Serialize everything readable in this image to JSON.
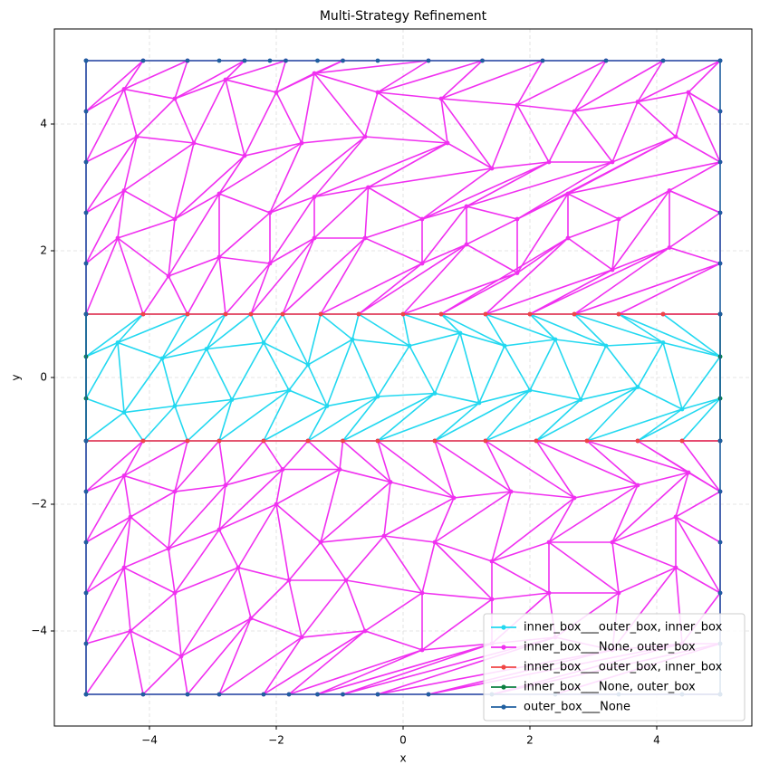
{
  "chart_data": {
    "type": "mesh",
    "title": "Multi-Strategy Refinement",
    "x_label": "x",
    "y_label": "y",
    "xlim": [
      -5.5,
      5.5
    ],
    "ylim": [
      -5.5,
      5.5
    ],
    "xticks": [
      {
        "value": -4,
        "label": "−4"
      },
      {
        "value": -2,
        "label": "−2"
      },
      0,
      2,
      4
    ],
    "yticks": [
      {
        "value": -4,
        "label": "−4"
      },
      {
        "value": -2,
        "label": "−2"
      },
      0,
      2,
      4
    ],
    "grid": true,
    "legend": "lower right",
    "series": [
      {
        "name": "inner_box___outer_box, inner_box",
        "color": "#22d8f0",
        "meshes": [
          [
            {
              "x": [
                -5,
                -4.1,
                -3.4,
                -2.8,
                -2.4,
                -1.9,
                -1.3,
                -0.7,
                0,
                0.6,
                1.3,
                2,
                2.7,
                3.4,
                4.1,
                5
              ],
              "y": [
                1,
                1,
                1,
                1,
                1,
                1,
                1,
                1,
                1,
                1,
                1,
                1,
                1,
                1,
                1,
                1
              ]
            },
            {
              "x": [
                -5,
                -4.5,
                -3.8,
                -3.1,
                -2.2,
                -1.5,
                -0.8,
                0.1,
                0.9,
                1.6,
                2.4,
                3.2,
                4.1,
                5
              ],
              "y": [
                0.33,
                0.55,
                0.3,
                0.45,
                0.55,
                0.2,
                0.6,
                0.5,
                0.7,
                0.5,
                0.6,
                0.5,
                0.55,
                0.33
              ]
            },
            {
              "x": [
                -5,
                -4.4,
                -3.6,
                -2.7,
                -1.8,
                -1.2,
                -0.4,
                0.5,
                1.2,
                2.0,
                2.8,
                3.7,
                4.4,
                5
              ],
              "y": [
                -0.33,
                -0.55,
                -0.45,
                -0.35,
                -0.2,
                -0.45,
                -0.3,
                -0.25,
                -0.4,
                -0.2,
                -0.35,
                -0.15,
                -0.5,
                -0.33
              ]
            },
            {
              "x": [
                -5,
                -4.1,
                -3.4,
                -2.9,
                -2.2,
                -1.5,
                -0.95,
                -0.4,
                0.5,
                1.3,
                2.1,
                2.9,
                3.7,
                4.4,
                5
              ],
              "y": [
                -1,
                -1,
                -1,
                -1,
                -1,
                -1,
                -1,
                -1,
                -1,
                -1,
                -1,
                -1,
                -1,
                -1,
                -1
              ]
            }
          ]
        ]
      },
      {
        "name": "inner_box___None, outer_box",
        "color": "#f030f0",
        "meshes": [
          [
            {
              "x": [
                -5,
                -4.1,
                -3.4,
                -2.5,
                -1.85,
                -0.95,
                0.4,
                1.25,
                2.2,
                3.2,
                4.1,
                5
              ],
              "y": [
                5,
                5,
                5,
                5,
                5,
                5,
                5,
                5,
                5,
                5,
                5,
                5
              ]
            },
            {
              "x": [
                -5,
                -4.4,
                -3.6,
                -2.8,
                -2.0,
                -1.4,
                -0.4,
                0.6,
                1.8,
                2.7,
                3.7,
                4.5,
                5
              ],
              "y": [
                4.2,
                4.55,
                4.4,
                4.7,
                4.5,
                4.8,
                4.5,
                4.4,
                4.3,
                4.2,
                4.35,
                4.5,
                4.2
              ]
            },
            {
              "x": [
                -5,
                -4.2,
                -3.3,
                -2.5,
                -1.6,
                -0.6,
                0.7,
                1.4,
                2.3,
                3.3,
                4.3,
                5
              ],
              "y": [
                3.4,
                3.8,
                3.7,
                3.5,
                3.7,
                3.8,
                3.7,
                3.3,
                3.4,
                3.4,
                3.8,
                3.4
              ]
            },
            {
              "x": [
                -5,
                -4.4,
                -3.6,
                -2.9,
                -2.1,
                -1.4,
                -0.55,
                0.3,
                1.0,
                1.8,
                2.6,
                3.4,
                4.2,
                5
              ],
              "y": [
                2.6,
                2.95,
                2.5,
                2.9,
                2.6,
                2.85,
                3.0,
                2.5,
                2.7,
                2.5,
                2.9,
                2.5,
                2.95,
                2.6
              ]
            },
            {
              "x": [
                -5,
                -4.5,
                -3.7,
                -2.9,
                -2.1,
                -1.4,
                -0.6,
                0.3,
                1.0,
                1.8,
                2.6,
                3.3,
                4.2,
                5
              ],
              "y": [
                1.8,
                2.2,
                1.6,
                1.9,
                1.8,
                2.2,
                2.2,
                1.8,
                2.1,
                1.65,
                2.2,
                1.7,
                2.05,
                1.8
              ]
            },
            {
              "x": [
                -5,
                -4.1,
                -3.4,
                -2.8,
                -2.4,
                -1.9,
                -1.3,
                -0.7,
                0,
                0.6,
                1.3,
                2,
                2.7,
                3.4,
                4.1,
                5
              ],
              "y": [
                1,
                1,
                1,
                1,
                1,
                1,
                1,
                1,
                1,
                1,
                1,
                1,
                1,
                1,
                1,
                1
              ]
            }
          ],
          [
            {
              "x": [
                -5,
                -4.1,
                -3.4,
                -2.9,
                -2.2,
                -1.5,
                -0.95,
                -0.4,
                0.5,
                1.3,
                2.1,
                2.9,
                3.7,
                4.4,
                5
              ],
              "y": [
                -1,
                -1,
                -1,
                -1,
                -1,
                -1,
                -1,
                -1,
                -1,
                -1,
                -1,
                -1,
                -1,
                -1,
                -1
              ]
            },
            {
              "x": [
                -5,
                -4.4,
                -3.6,
                -2.8,
                -1.9,
                -1.0,
                -0.2,
                0.8,
                1.7,
                2.7,
                3.7,
                4.5,
                5
              ],
              "y": [
                -1.8,
                -1.55,
                -1.8,
                -1.7,
                -1.45,
                -1.45,
                -1.65,
                -1.9,
                -1.8,
                -1.9,
                -1.7,
                -1.5,
                -1.8
              ]
            },
            {
              "x": [
                -5,
                -4.3,
                -3.7,
                -2.9,
                -2.0,
                -1.3,
                -0.3,
                0.5,
                1.4,
                2.3,
                3.3,
                4.3,
                5
              ],
              "y": [
                -2.6,
                -2.2,
                -2.7,
                -2.4,
                -2.0,
                -2.6,
                -2.5,
                -2.6,
                -2.9,
                -2.6,
                -2.6,
                -2.2,
                -2.6
              ]
            },
            {
              "x": [
                -5,
                -4.4,
                -3.6,
                -2.6,
                -1.8,
                -0.9,
                0.3,
                1.4,
                2.3,
                3.4,
                4.3,
                5
              ],
              "y": [
                -3.4,
                -3.0,
                -3.4,
                -3.0,
                -3.2,
                -3.2,
                -3.4,
                -3.5,
                -3.4,
                -3.4,
                -3.0,
                -3.4
              ]
            },
            {
              "x": [
                -5,
                -4.3,
                -3.5,
                -2.4,
                -1.6,
                -0.6,
                0.3,
                1.4,
                2.4,
                3.3,
                4.4,
                5
              ],
              "y": [
                -4.2,
                -4.0,
                -4.4,
                -3.8,
                -4.1,
                -4.0,
                -4.3,
                -4.2,
                -4.1,
                -4.3,
                -4.2,
                -4.2
              ]
            },
            {
              "x": [
                -5,
                -4.1,
                -3.4,
                -2.9,
                -2.2,
                -1.8,
                -1.35,
                -0.95,
                -0.4,
                0.4,
                1.4,
                2.4,
                3.4,
                4.4,
                5
              ],
              "y": [
                -5,
                -5,
                -5,
                -5,
                -5,
                -5,
                -5,
                -5,
                -5,
                -5,
                -5,
                -5,
                -5,
                -5,
                -5
              ]
            }
          ]
        ]
      },
      {
        "name": "inner_box___outer_box, inner_box",
        "color": "#f04545",
        "lines": [
          {
            "x": [
              -5,
              -4.1,
              -3.4,
              -2.8,
              -2.4,
              -1.9,
              -1.3,
              -0.7,
              0,
              0.6,
              1.3,
              2,
              2.7,
              3.4,
              4.1,
              5
            ],
            "y": [
              1,
              1,
              1,
              1,
              1,
              1,
              1,
              1,
              1,
              1,
              1,
              1,
              1,
              1,
              1,
              1
            ]
          },
          {
            "x": [
              -5,
              -4.1,
              -3.4,
              -2.9,
              -2.2,
              -1.5,
              -0.95,
              -0.4,
              0.5,
              1.3,
              2.1,
              2.9,
              3.7,
              4.4,
              5
            ],
            "y": [
              -1,
              -1,
              -1,
              -1,
              -1,
              -1,
              -1,
              -1,
              -1,
              -1,
              -1,
              -1,
              -1,
              -1,
              -1
            ]
          }
        ]
      },
      {
        "name": "inner_box___None, outer_box",
        "color": "#0a8040",
        "lines": [
          {
            "x": [
              -5,
              -5,
              -5,
              -5
            ],
            "y": [
              -1,
              -0.33,
              0.33,
              1
            ]
          },
          {
            "x": [
              5,
              5,
              5,
              5
            ],
            "y": [
              -1,
              -0.33,
              0.33,
              1
            ]
          }
        ]
      },
      {
        "name": "outer_box___None",
        "color": "#1f5fa0",
        "lines": [
          {
            "x": [
              -5,
              -4.1,
              -3.4,
              -2.9,
              -2.5,
              -2.1,
              -1.85,
              -1.35,
              -0.95,
              -0.4,
              0.4,
              1.25,
              2.2,
              3.2,
              4.1,
              5
            ],
            "y": [
              5,
              5,
              5,
              5,
              5,
              5,
              5,
              5,
              5,
              5,
              5,
              5,
              5,
              5,
              5,
              5
            ]
          },
          {
            "x": [
              5,
              5,
              5,
              5,
              5,
              5,
              5,
              5,
              5,
              5,
              5,
              5
            ],
            "y": [
              5,
              4.2,
              3.4,
              2.6,
              1.8,
              1,
              -1,
              -1.8,
              -2.6,
              -3.4,
              -4.2,
              -5
            ]
          },
          {
            "x": [
              -5,
              -4.1,
              -3.4,
              -2.9,
              -2.2,
              -1.8,
              -1.35,
              -0.95,
              -0.4,
              0.4,
              1.4,
              2.4,
              3.4,
              4.4,
              5
            ],
            "y": [
              -5,
              -5,
              -5,
              -5,
              -5,
              -5,
              -5,
              -5,
              -5,
              -5,
              -5,
              -5,
              -5,
              -5,
              -5
            ]
          },
          {
            "x": [
              -5,
              -5,
              -5,
              -5,
              -5,
              -5,
              -5,
              -5,
              -5,
              -5,
              -5,
              -5
            ],
            "y": [
              5,
              4.2,
              3.4,
              2.6,
              1.8,
              1,
              -1,
              -1.8,
              -2.6,
              -3.4,
              -4.2,
              -5
            ]
          }
        ]
      }
    ]
  }
}
